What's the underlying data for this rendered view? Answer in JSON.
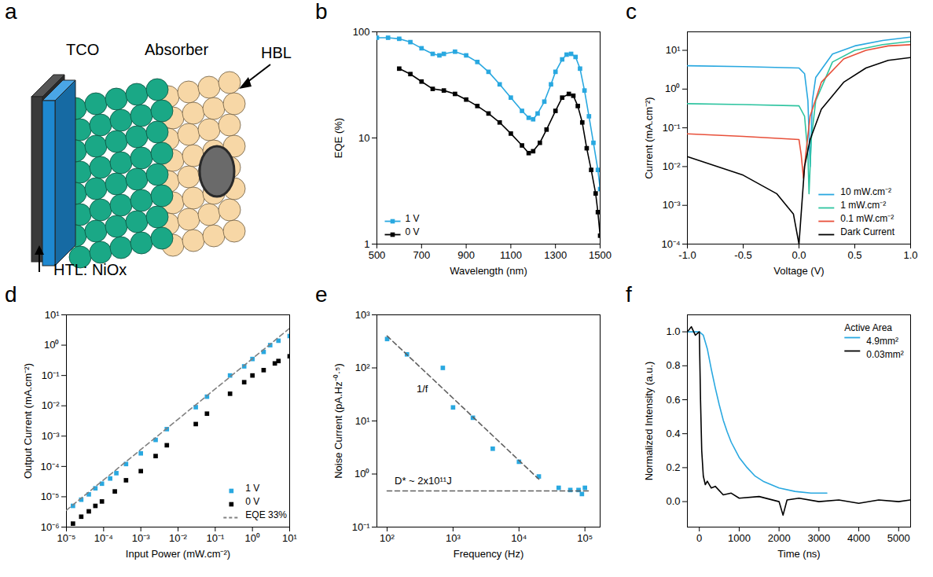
{
  "diagram": {
    "panel": "a",
    "type": "diagram",
    "labels": {
      "tco": "TCO",
      "absorber": "Absorber",
      "hbl": "HBL",
      "htl": "HTL: NiOx"
    }
  },
  "chart_data": [
    {
      "panel": "b",
      "type": "line",
      "x_label": "Wavelength (nm)",
      "y_label": "EQE (%)",
      "log": "y",
      "grid": false,
      "legend": "bottom-left",
      "xlim": [
        500,
        1500
      ],
      "xticks": [
        500,
        700,
        900,
        1100,
        1300,
        1500
      ],
      "ylim": [
        1,
        100
      ],
      "yticks": [
        1,
        10,
        100
      ],
      "series": [
        {
          "name": "1 V",
          "color": "#29a8e0",
          "marker": "square",
          "x": [
            500,
            550,
            600,
            650,
            700,
            750,
            780,
            800,
            850,
            900,
            950,
            1000,
            1050,
            1100,
            1150,
            1180,
            1200,
            1220,
            1250,
            1280,
            1300,
            1330,
            1350,
            1370,
            1390,
            1410,
            1430,
            1450,
            1470,
            1490,
            1500
          ],
          "values": [
            88,
            88,
            86,
            80,
            70,
            62,
            60,
            62,
            65,
            60,
            52,
            42,
            32,
            24,
            18,
            15.5,
            15,
            17,
            22,
            32,
            42,
            55,
            61,
            62,
            58,
            45,
            28,
            16,
            9,
            5,
            3.3
          ]
        },
        {
          "name": "0 V",
          "color": "#000000",
          "marker": "square",
          "x": [
            600,
            650,
            700,
            750,
            800,
            850,
            900,
            950,
            1000,
            1050,
            1100,
            1150,
            1180,
            1200,
            1230,
            1260,
            1300,
            1330,
            1360,
            1380,
            1400,
            1420,
            1440,
            1460,
            1480,
            1490,
            1500
          ],
          "values": [
            45,
            40,
            34,
            29,
            28,
            26,
            23,
            20,
            17,
            14,
            11,
            8.5,
            7.2,
            7.5,
            9,
            12,
            18,
            24,
            26,
            25,
            20,
            14,
            8,
            5,
            3,
            2,
            1.2
          ]
        }
      ]
    },
    {
      "panel": "c",
      "type": "line",
      "x_label": "Voltage (V)",
      "y_label": "Current (mA.cm⁻²)",
      "log": "y",
      "grid": false,
      "legend": "bottom-right",
      "xlim": [
        -1,
        1
      ],
      "xticks": [
        {
          "value": -1,
          "label": "-1.0"
        },
        {
          "value": -0.5,
          "label": "-0.5"
        },
        {
          "value": 0,
          "label": "0.0"
        },
        {
          "value": 0.5,
          "label": "0.5"
        },
        {
          "value": 1,
          "label": "1.0"
        }
      ],
      "ylim": [
        0.0001,
        30
      ],
      "yticks": [
        {
          "value": 0.0001,
          "label": "10⁻⁴"
        },
        {
          "value": 0.001,
          "label": "10⁻³"
        },
        {
          "value": 0.01,
          "label": "10⁻²"
        },
        {
          "value": 0.1,
          "label": "10⁻¹"
        },
        {
          "value": 1,
          "label": "10⁰"
        },
        {
          "value": 10,
          "label": "10¹"
        }
      ],
      "series": [
        {
          "name": "10 mW.cm⁻²",
          "color": "#29a8e0",
          "line_style": "solid",
          "x": [
            -1,
            -0.5,
            0,
            0.05,
            0.08,
            0.1,
            0.12,
            0.15,
            0.3,
            0.5,
            0.75,
            1
          ],
          "values": [
            4,
            3.8,
            3.5,
            2.5,
            0.5,
            0.01,
            0.5,
            2,
            8,
            13,
            18,
            22
          ]
        },
        {
          "name": "1 mW.cm⁻²",
          "color": "#2ec4a0",
          "line_style": "solid",
          "x": [
            -1,
            -0.5,
            0,
            0.05,
            0.08,
            0.09,
            0.11,
            0.15,
            0.3,
            0.5,
            0.75,
            1
          ],
          "values": [
            0.42,
            0.4,
            0.37,
            0.2,
            0.02,
            0.002,
            0.05,
            0.5,
            5,
            10,
            14,
            17
          ]
        },
        {
          "name": "0.1 mW.cm⁻²",
          "color": "#e8503a",
          "line_style": "solid",
          "x": [
            -1,
            -0.5,
            0,
            0.02,
            0.04,
            0.06,
            0.1,
            0.2,
            0.4,
            0.6,
            0.8,
            1
          ],
          "values": [
            0.07,
            0.06,
            0.05,
            0.02,
            0.005,
            0.02,
            0.2,
            1.5,
            6,
            10,
            13,
            14
          ]
        },
        {
          "name": "Dark Current",
          "color": "#000000",
          "line_style": "solid",
          "x": [
            -1,
            -0.5,
            -0.2,
            -0.05,
            0,
            0.05,
            0.1,
            0.2,
            0.4,
            0.6,
            0.8,
            1
          ],
          "values": [
            0.018,
            0.006,
            0.002,
            0.0006,
            0.0001,
            0.01,
            0.05,
            0.3,
            1.5,
            3.5,
            5.5,
            6.5
          ]
        }
      ]
    },
    {
      "panel": "d",
      "type": "scatter",
      "x_label": "Input Power (mW.cm⁻²)",
      "y_label": "Output Current (mA.cm⁻²)",
      "log": true,
      "grid": false,
      "legend": "bottom-right",
      "xlim": [
        1e-05,
        10
      ],
      "xticks": [
        {
          "value": 1e-05,
          "label": "10⁻⁵"
        },
        {
          "value": 0.0001,
          "label": "10⁻⁴"
        },
        {
          "value": 0.001,
          "label": "10⁻³"
        },
        {
          "value": 0.01,
          "label": "10⁻²"
        },
        {
          "value": 0.1,
          "label": "10⁻¹"
        },
        {
          "value": 1,
          "label": "10⁰"
        },
        {
          "value": 10,
          "label": "10¹"
        }
      ],
      "ylim": [
        1e-06,
        10
      ],
      "yticks": [
        {
          "value": 1e-06,
          "label": "10⁻⁶"
        },
        {
          "value": 1e-05,
          "label": "10⁻⁵"
        },
        {
          "value": 0.0001,
          "label": "10⁻⁴"
        },
        {
          "value": 0.001,
          "label": "10⁻³"
        },
        {
          "value": 0.01,
          "label": "10⁻²"
        },
        {
          "value": 0.1,
          "label": "10⁻¹"
        },
        {
          "value": 1,
          "label": "10⁰"
        },
        {
          "value": 10,
          "label": "10¹"
        }
      ],
      "series": [
        {
          "name": "1 V",
          "color": "#29a8e0",
          "marker": "square",
          "x": [
            1.5e-05,
            2.5e-05,
            4e-05,
            6e-05,
            9e-05,
            0.00015,
            0.00022,
            0.0004,
            0.001,
            0.0025,
            0.005,
            0.03,
            0.06,
            0.25,
            0.6,
            1,
            2,
            3,
            5,
            10
          ],
          "values": [
            5e-06,
            8e-06,
            1.2e-05,
            1.9e-05,
            2.7e-05,
            4e-05,
            6e-05,
            0.00012,
            0.00027,
            0.00075,
            0.0017,
            0.009,
            0.02,
            0.1,
            0.2,
            0.35,
            0.6,
            1,
            1.4,
            2
          ]
        },
        {
          "name": "0 V",
          "color": "#000000",
          "marker": "square",
          "x": [
            1.5e-05,
            2.5e-05,
            4e-05,
            6e-05,
            9e-05,
            0.0002,
            0.0004,
            0.001,
            0.0025,
            0.005,
            0.03,
            0.06,
            0.25,
            0.6,
            1,
            2,
            4,
            5,
            10
          ],
          "values": [
            1.3e-06,
            2.2e-06,
            3.3e-06,
            5e-06,
            7e-06,
            1.5e-05,
            3.5e-05,
            7e-05,
            0.00022,
            0.0005,
            0.0025,
            0.0055,
            0.025,
            0.06,
            0.1,
            0.15,
            0.25,
            0.3,
            0.43
          ]
        },
        {
          "name": "EQE 33%",
          "color": "#808080",
          "type": "line",
          "line_style": "dashed",
          "x": [
            1e-05,
            10
          ],
          "values": [
            3.6e-06,
            3.6
          ]
        }
      ]
    },
    {
      "panel": "e",
      "type": "scatter",
      "x_label": "Frequency (Hz)",
      "y_label": "Noise Current (pA.Hz⁻⁰·⁵)",
      "log": true,
      "grid": false,
      "xlim": [
        70,
        170000
      ],
      "xticks": [
        {
          "value": 100,
          "label": "10²"
        },
        {
          "value": 1000,
          "label": "10³"
        },
        {
          "value": 10000,
          "label": "10⁴"
        },
        {
          "value": 100000,
          "label": "10⁵"
        }
      ],
      "ylim": [
        0.1,
        1000
      ],
      "yticks": [
        {
          "value": 0.1,
          "label": "10⁻¹"
        },
        {
          "value": 1,
          "label": "10⁰"
        },
        {
          "value": 10,
          "label": "10¹"
        },
        {
          "value": 100,
          "label": "10²"
        },
        {
          "value": 1000,
          "label": "10³"
        }
      ],
      "annotations": [
        {
          "text": "1/f",
          "x": 280,
          "y": 40
        },
        {
          "text": "D* ~ 2x10¹¹J",
          "x": 130,
          "y": 0.75
        }
      ],
      "series": [
        {
          "color": "#29a8e0",
          "marker": "square",
          "x": [
            100,
            200,
            700,
            1000,
            2000,
            4000,
            10000,
            20000,
            40000,
            60000,
            80000,
            90000,
            100000
          ],
          "values": [
            350,
            180,
            100,
            18,
            11.5,
            3,
            1.7,
            0.9,
            0.55,
            0.5,
            0.5,
            0.42,
            0.55
          ]
        },
        {
          "color": "#606060",
          "type": "line",
          "line_style": "dashed",
          "x": [
            100,
            20000
          ],
          "values": [
            400,
            0.8
          ]
        },
        {
          "color": "#606060",
          "type": "line",
          "line_style": "dashed",
          "x": [
            100,
            120000
          ],
          "values": [
            0.48,
            0.48
          ]
        }
      ]
    },
    {
      "panel": "f",
      "type": "line",
      "x_label": "Time (ns)",
      "y_label": "Normalized Intensity (a.u.)",
      "grid": false,
      "legend": "top-right",
      "legend_title": "Active Area",
      "xlim": [
        -300,
        5300
      ],
      "xticks": [
        0,
        1000,
        2000,
        3000,
        4000,
        5000
      ],
      "ylim": [
        -0.15,
        1.1
      ],
      "yticks": [
        {
          "value": 0,
          "label": "0.0"
        },
        {
          "value": 0.2,
          "label": "0.2"
        },
        {
          "value": 0.4,
          "label": "0.4"
        },
        {
          "value": 0.6,
          "label": "0.6"
        },
        {
          "value": 0.8,
          "label": "0.8"
        },
        {
          "value": 1,
          "label": "1.0"
        }
      ],
      "series": [
        {
          "name": "4.9mm²",
          "color": "#29a8e0",
          "line_style": "solid",
          "x": [
            -300,
            0,
            100,
            200,
            300,
            400,
            500,
            600,
            700,
            800,
            1000,
            1200,
            1400,
            1600,
            1800,
            2000,
            2400,
            2800,
            3200
          ],
          "values": [
            1,
            1,
            0.98,
            0.9,
            0.78,
            0.67,
            0.57,
            0.48,
            0.41,
            0.35,
            0.26,
            0.2,
            0.15,
            0.12,
            0.1,
            0.08,
            0.06,
            0.05,
            0.05
          ]
        },
        {
          "name": "0.03mm²",
          "color": "#000000",
          "line_style": "solid",
          "x": [
            -300,
            -200,
            -100,
            0,
            30,
            60,
            100,
            150,
            200,
            300,
            400,
            600,
            800,
            1000,
            1500,
            2000,
            2100,
            2200,
            2500,
            3000,
            3500,
            4000,
            4500,
            5000,
            5300
          ],
          "values": [
            1,
            1.03,
            0.98,
            1,
            0.6,
            0.3,
            0.15,
            0.1,
            0.12,
            0.08,
            0.09,
            0.04,
            0.05,
            0.02,
            0.03,
            0,
            -0.08,
            0.01,
            0.02,
            0,
            0.01,
            -0.01,
            0.01,
            0,
            0.01
          ]
        }
      ]
    }
  ]
}
